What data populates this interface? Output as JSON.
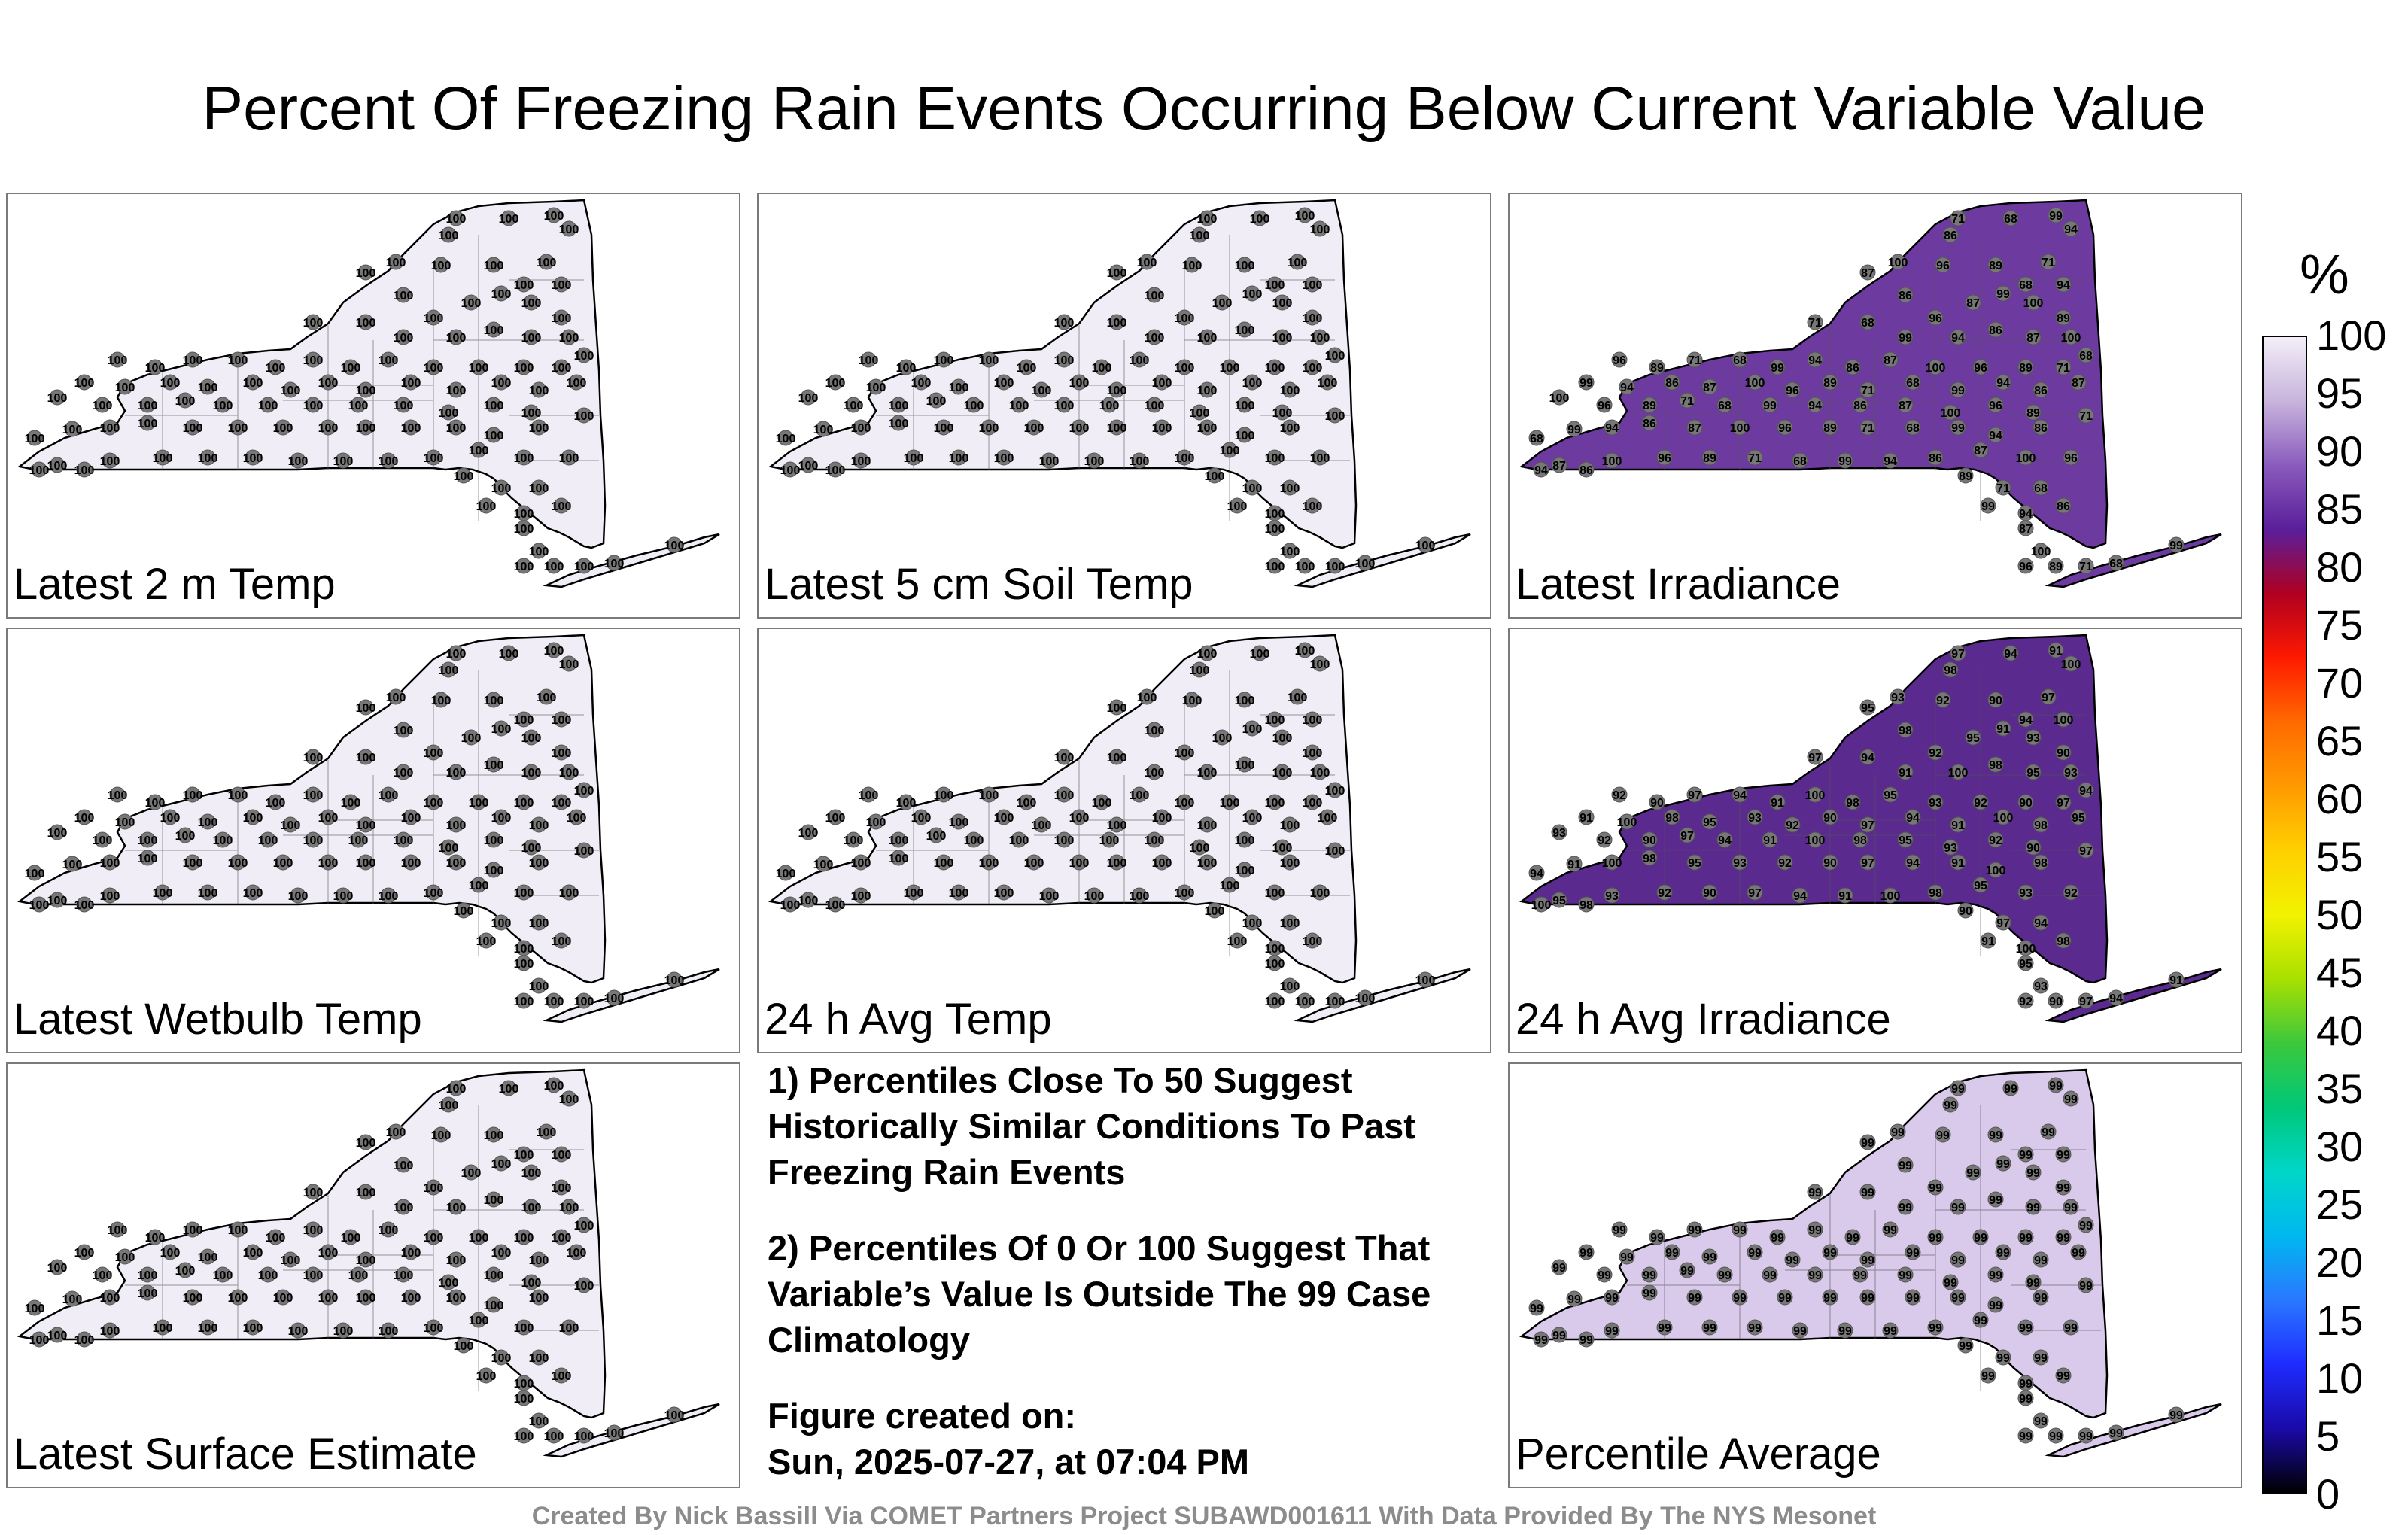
{
  "title": "Percent Of Freezing Rain Events Occurring Below Current Variable Value",
  "panels": [
    {
      "label": "Latest 2 m Temp",
      "fill": "#f1edf6",
      "values": [
        "100"
      ]
    },
    {
      "label": "Latest 5 cm Soil Temp",
      "fill": "#f1edf6",
      "values": [
        "100"
      ]
    },
    {
      "label": "Latest Irradiance",
      "fill": "#6d3ba0",
      "values": [
        "68",
        "87",
        "71",
        "86",
        "89",
        "94",
        "96",
        "99",
        "100"
      ]
    },
    {
      "label": "Latest Wetbulb Temp",
      "fill": "#f1edf6",
      "values": [
        "100"
      ]
    },
    {
      "label": "24 h Avg Temp",
      "fill": "#f1edf6",
      "values": [
        "100"
      ]
    },
    {
      "label": "24 h Avg Irradiance",
      "fill": "#5a2a8f",
      "values": [
        "92",
        "91",
        "93",
        "94",
        "95",
        "97",
        "98",
        "90",
        "100"
      ]
    },
    {
      "label": "Latest Surface Estimate",
      "fill": "#f1edf6",
      "values": [
        "100"
      ]
    },
    {
      "label": "Percentile Average",
      "fill": "#d9c9ea",
      "values": [
        "99",
        "97",
        "98",
        "94",
        "95",
        "96",
        "100"
      ]
    }
  ],
  "notes": {
    "line1": "1) Percentiles Close To 50 Suggest Historically Similar Conditions To Past Freezing Rain Events",
    "line2": "2) Percentiles Of 0 Or 100 Suggest That Variable’s Value Is Outside The 99 Case Climatology",
    "created_label": "Figure created on:",
    "created_value": "Sun, 2025-07-27, at 07:04 PM"
  },
  "colorbar": {
    "unit": "%",
    "ticks": [
      "100",
      "95",
      "90",
      "85",
      "80",
      "75",
      "70",
      "65",
      "60",
      "55",
      "50",
      "45",
      "40",
      "35",
      "30",
      "25",
      "20",
      "15",
      "10",
      "5",
      "0"
    ],
    "stops": [
      "#f3eef8",
      "#c8b4dc",
      "#8a5bbd",
      "#5a1e9a",
      "#b00020",
      "#ff1a00",
      "#ff6a00",
      "#ff9a00",
      "#ffd000",
      "#f2f200",
      "#a8e000",
      "#3cc83c",
      "#00c878",
      "#00d6c8",
      "#00b8f0",
      "#2a78ff",
      "#1e2cff",
      "#1a0aa8",
      "#000000"
    ]
  },
  "footer": "Created By Nick Bassill Via COMET Partners Project SUBAWD001611 With Data Provided By The NYS Mesonet"
}
